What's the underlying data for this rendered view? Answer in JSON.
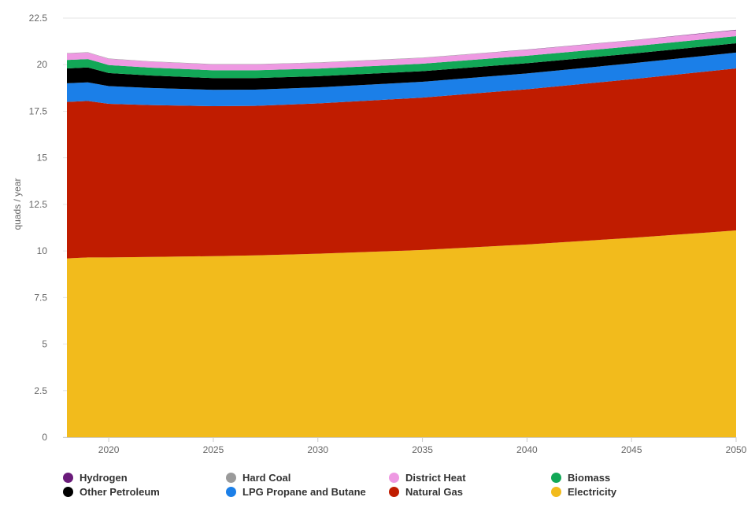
{
  "chart_data": {
    "type": "area",
    "stacked": true,
    "xlabel": "",
    "ylabel": "quads / year",
    "xlim": [
      2018,
      2050
    ],
    "ylim": [
      0,
      22.5
    ],
    "x_ticks": [
      "2020",
      "2025",
      "2030",
      "2035",
      "2040",
      "2045",
      "2050"
    ],
    "y_ticks": [
      "0",
      "2.5",
      "5",
      "7.5",
      "10",
      "12.5",
      "15",
      "17.5",
      "20",
      "22.5"
    ],
    "grid": "horizontal",
    "legend_position": "bottom",
    "x": [
      2018,
      2019,
      2020,
      2022,
      2025,
      2027,
      2030,
      2035,
      2040,
      2045,
      2050
    ],
    "series": [
      {
        "name": "Electricity",
        "color": "#f2bb1c",
        "values": [
          9.6,
          9.65,
          9.65,
          9.68,
          9.72,
          9.76,
          9.85,
          10.05,
          10.35,
          10.7,
          11.1
        ]
      },
      {
        "name": "Natural Gas",
        "color": "#c01c00",
        "values": [
          8.4,
          8.4,
          8.25,
          8.15,
          8.05,
          8.03,
          8.07,
          8.18,
          8.33,
          8.52,
          8.7
        ]
      },
      {
        "name": "LPG Propane and Butane",
        "color": "#1b7fe8",
        "values": [
          1.0,
          1.0,
          0.95,
          0.92,
          0.88,
          0.87,
          0.86,
          0.85,
          0.85,
          0.85,
          0.85
        ]
      },
      {
        "name": "Other Petroleum",
        "color": "#000000",
        "values": [
          0.8,
          0.8,
          0.7,
          0.67,
          0.63,
          0.62,
          0.6,
          0.57,
          0.55,
          0.52,
          0.5
        ]
      },
      {
        "name": "Biomass",
        "color": "#12a857",
        "values": [
          0.45,
          0.45,
          0.43,
          0.42,
          0.42,
          0.42,
          0.41,
          0.4,
          0.4,
          0.39,
          0.38
        ]
      },
      {
        "name": "District Heat",
        "color": "#ee99e2",
        "values": [
          0.35,
          0.35,
          0.33,
          0.32,
          0.31,
          0.31,
          0.31,
          0.31,
          0.31,
          0.31,
          0.31
        ]
      },
      {
        "name": "Hard Coal",
        "color": "#9a9a9a",
        "values": [
          0.02,
          0.02,
          0.02,
          0.02,
          0.02,
          0.02,
          0.02,
          0.02,
          0.01,
          0.01,
          0.01
        ]
      },
      {
        "name": "Hydrogen",
        "color": "#6a1b7a",
        "values": [
          0,
          0,
          0,
          0,
          0,
          0,
          0,
          0,
          0.01,
          0.01,
          0.02
        ]
      }
    ],
    "legend_order": [
      "Hydrogen",
      "Hard Coal",
      "District Heat",
      "Biomass",
      "Other Petroleum",
      "LPG Propane and Butane",
      "Natural Gas",
      "Electricity"
    ]
  }
}
